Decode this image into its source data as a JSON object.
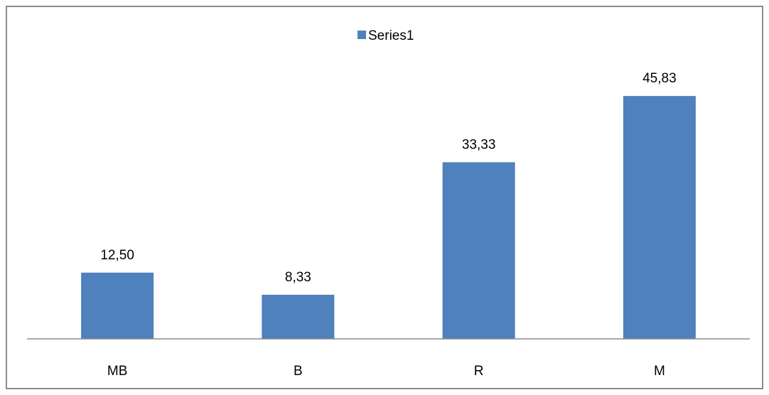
{
  "chart_data": {
    "type": "bar",
    "categories": [
      "MB",
      "B",
      "R",
      "M"
    ],
    "series": [
      {
        "name": "Series1",
        "values": [
          12.5,
          8.33,
          33.33,
          45.83
        ],
        "value_labels": [
          "12,50",
          "8,33",
          "33,33",
          "45,83"
        ]
      }
    ],
    "legend": {
      "placement": "top-center",
      "label": "Series1"
    },
    "grid": false,
    "ylim": [
      0,
      50
    ],
    "xlabel": "",
    "ylabel": "",
    "title": ""
  },
  "colors": {
    "bar": "#4f81bd",
    "axis": "#8c8c8c",
    "frame": "#8c8c8c"
  }
}
